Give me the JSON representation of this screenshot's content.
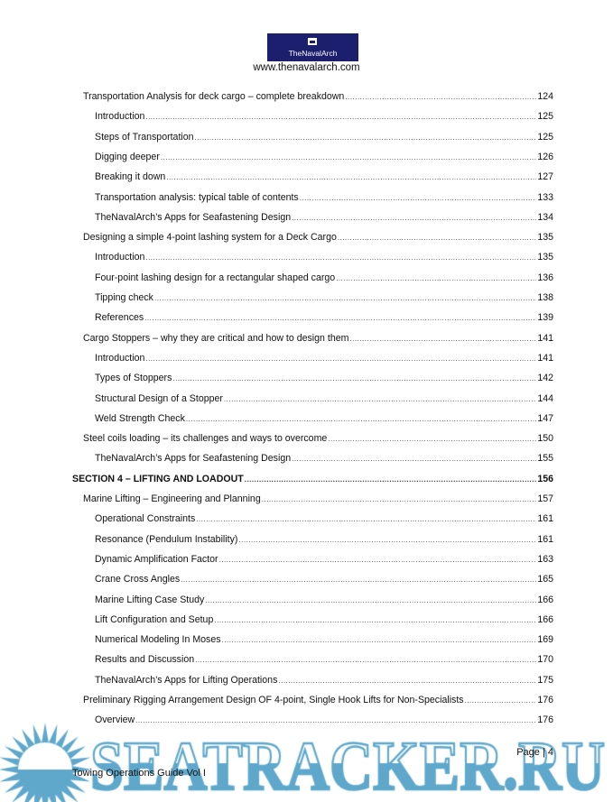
{
  "header": {
    "logo_text": "TheNavalArch",
    "website": "www.thenavalarch.com"
  },
  "toc": [
    {
      "level": 1,
      "title": "Transportation Analysis for deck cargo – complete breakdown",
      "page": "124"
    },
    {
      "level": 2,
      "title": "Introduction",
      "page": "125"
    },
    {
      "level": 2,
      "title": "Steps of Transportation",
      "page": "125"
    },
    {
      "level": 2,
      "title": "Digging deeper",
      "page": "126"
    },
    {
      "level": 2,
      "title": "Breaking it down",
      "page": "127"
    },
    {
      "level": 2,
      "title": "Transportation analysis: typical table of contents",
      "page": "133"
    },
    {
      "level": 2,
      "title": "TheNavalArch’s Apps for Seafastening Design",
      "page": "134"
    },
    {
      "level": 1,
      "title": "Designing a simple 4-point lashing system for a Deck Cargo",
      "page": "135"
    },
    {
      "level": 2,
      "title": "Introduction",
      "page": "135"
    },
    {
      "level": 2,
      "title": "Four-point lashing design for a rectangular shaped cargo",
      "page": "136"
    },
    {
      "level": 2,
      "title": "Tipping check",
      "page": "138"
    },
    {
      "level": 2,
      "title": "References",
      "page": "139"
    },
    {
      "level": 1,
      "title": "Cargo Stoppers – why they are critical and how to design them",
      "page": "141"
    },
    {
      "level": 2,
      "title": "Introduction",
      "page": "141"
    },
    {
      "level": 2,
      "title": "Types of Stoppers",
      "page": "142"
    },
    {
      "level": 2,
      "title": "Structural Design of a Stopper",
      "page": "144"
    },
    {
      "level": 2,
      "title": "Weld Strength Check",
      "page": "147"
    },
    {
      "level": 1,
      "title": "Steel coils loading – its challenges and ways to overcome",
      "page": "150"
    },
    {
      "level": 2,
      "title": "TheNavalArch’s Apps for Seafastening Design",
      "page": "155"
    },
    {
      "level": 0,
      "title": "SECTION 4 – LIFTING AND LOADOUT",
      "page": "156"
    },
    {
      "level": 1,
      "title": "Marine Lifting – Engineering and Planning",
      "page": "157"
    },
    {
      "level": 2,
      "title": "Operational Constraints",
      "page": "161"
    },
    {
      "level": 2,
      "title": "Resonance (Pendulum Instability)",
      "page": "161"
    },
    {
      "level": 2,
      "title": "Dynamic Amplification Factor",
      "page": "163"
    },
    {
      "level": 2,
      "title": "Crane Cross Angles",
      "page": "165"
    },
    {
      "level": 2,
      "title": "Marine Lifting Case Study",
      "page": "166"
    },
    {
      "level": 2,
      "title": "Lift Configuration and Setup",
      "page": "166"
    },
    {
      "level": 2,
      "title": "Numerical Modeling In Moses",
      "page": "169"
    },
    {
      "level": 2,
      "title": "Results and Discussion",
      "page": "170"
    },
    {
      "level": 2,
      "title": "TheNavalArch’s Apps for Lifting Operations",
      "page": "175"
    },
    {
      "level": 1,
      "title": "Preliminary Rigging Arrangement Design OF 4-point, Single Hook Lifts for Non-Specialists",
      "page": "176"
    },
    {
      "level": 2,
      "title": "Overview",
      "page": "176"
    }
  ],
  "footer": {
    "page_label": "Page | 4",
    "doc_title": "Towing Operations Guide Vol I"
  },
  "watermark": {
    "text": "SEATRACKER.RU",
    "color": "#5fa8cc"
  }
}
